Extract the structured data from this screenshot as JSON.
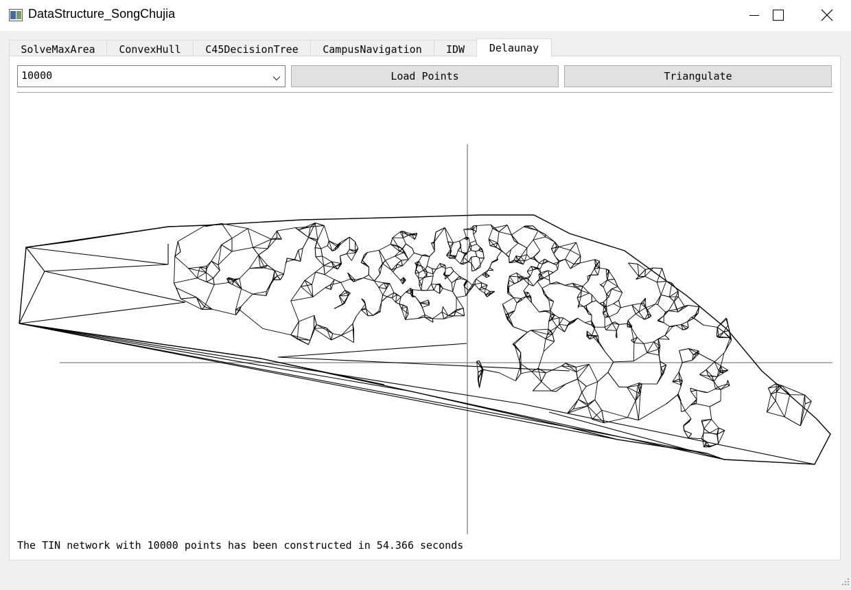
{
  "window": {
    "title": "DataStructure_SongChujia"
  },
  "tabs": [
    {
      "label": "SolveMaxArea"
    },
    {
      "label": "ConvexHull"
    },
    {
      "label": "C45DecisionTree"
    },
    {
      "label": "CampusNavigation"
    },
    {
      "label": "IDW"
    },
    {
      "label": "Delaunay"
    }
  ],
  "active_tab": "Delaunay",
  "toolbar": {
    "point_count": "10000",
    "load_label": "Load Points",
    "triangulate_label": "Triangulate"
  },
  "status": {
    "message": "The TIN network with 10000 points has been constructed in 54.366 seconds"
  },
  "icons": [
    "app-icon",
    "minimize-icon",
    "maximize-icon",
    "close-icon",
    "chevron-down-icon",
    "resize-grip-icon"
  ],
  "colors": {
    "mesh": "#000000",
    "axes": "#808080",
    "panel": "#ffffff",
    "window": "#f0f0f0"
  }
}
